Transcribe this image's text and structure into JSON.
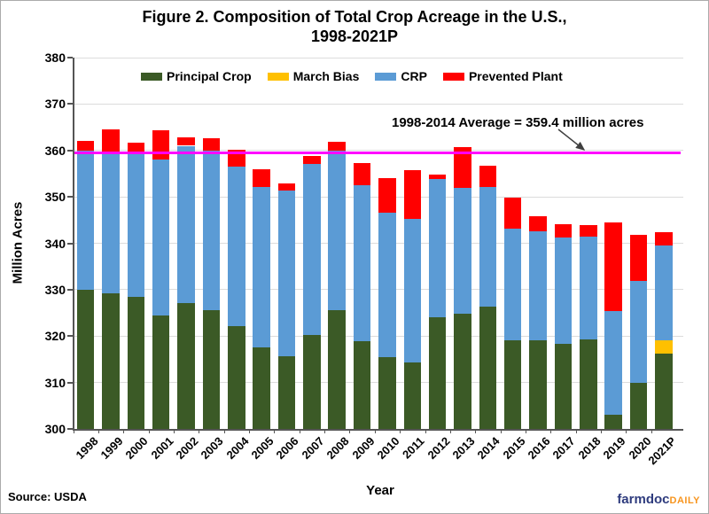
{
  "title": {
    "line1": "Figure 2. Composition of Total Crop Acreage in the U.S.,",
    "line2": "1998-2021P"
  },
  "source_label": "Source: USDA",
  "logo": {
    "part1": "farmdoc",
    "part2": "DAILY"
  },
  "chart_data": {
    "type": "bar",
    "stacked": true,
    "title": "Figure 2. Composition of Total Crop Acreage in the U.S., 1998-2021P",
    "xlabel": "Year",
    "ylabel": "Million Acres",
    "ylim": [
      300,
      380
    ],
    "yticks": [
      300,
      310,
      320,
      330,
      340,
      350,
      360,
      370,
      380
    ],
    "grid": "horizontal",
    "legend_position": "top-inside",
    "first_series_absolute_from_zero": true,
    "categories": [
      "1998",
      "1999",
      "2000",
      "2001",
      "2002",
      "2003",
      "2004",
      "2005",
      "2006",
      "2007",
      "2008",
      "2009",
      "2010",
      "2011",
      "2012",
      "2013",
      "2014",
      "2015",
      "2016",
      "2017",
      "2018",
      "2019",
      "2020",
      "2021P"
    ],
    "series": [
      {
        "name": "Principal Crop",
        "color": "#3b5a26",
        "values": [
          330.0,
          329.3,
          328.5,
          324.5,
          327.2,
          325.6,
          322.2,
          317.5,
          315.7,
          320.2,
          325.6,
          318.9,
          315.4,
          314.3,
          324.0,
          324.8,
          326.4,
          319.0,
          319.0,
          318.3,
          319.2,
          303.0,
          310.0,
          316.3
        ]
      },
      {
        "name": "March Bias",
        "color": "#ffc000",
        "values": [
          0,
          0,
          0,
          0,
          0,
          0,
          0,
          0,
          0,
          0,
          0,
          0,
          0,
          0,
          0,
          0,
          0,
          0,
          0,
          0,
          0,
          0,
          0,
          2.7
        ]
      },
      {
        "name": "CRP",
        "color": "#5b9bd5",
        "values": [
          30.0,
          29.8,
          31.3,
          33.5,
          33.8,
          34.3,
          34.4,
          34.6,
          35.6,
          36.8,
          34.4,
          33.6,
          31.1,
          31.0,
          29.9,
          27.1,
          25.7,
          24.2,
          23.5,
          22.9,
          22.3,
          22.4,
          21.8,
          20.5
        ]
      },
      {
        "name": "Prevented Plant",
        "color": "#ff0000",
        "values": [
          2.0,
          5.5,
          1.9,
          6.4,
          1.9,
          2.8,
          3.5,
          3.9,
          1.5,
          1.8,
          1.9,
          4.8,
          7.5,
          10.4,
          0.9,
          8.9,
          4.6,
          6.6,
          3.3,
          2.9,
          2.4,
          19.0,
          10.0,
          2.8
        ]
      }
    ],
    "average_line": {
      "label": "1998-2014 Average = 359.4 million acres",
      "value": 359.4,
      "color": "#ff00ff"
    }
  }
}
